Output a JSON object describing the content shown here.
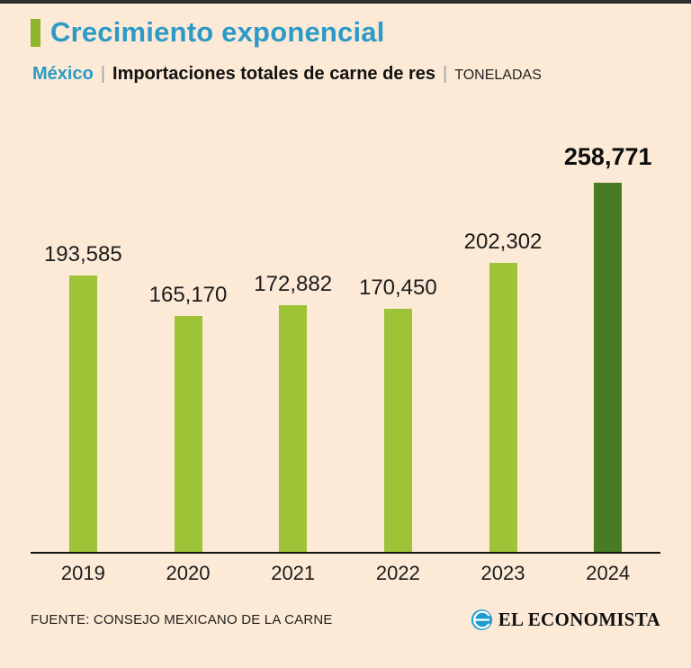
{
  "header": {
    "title": "Crecimiento exponencial",
    "kicker_region": "México",
    "separator": "|",
    "kicker_subject": "Importaciones totales de carne de res",
    "kicker_unit": "TONELADAS"
  },
  "chart_data": {
    "type": "bar",
    "title": "Crecimiento exponencial",
    "subtitle": "México | Importaciones totales de carne de res | Toneladas",
    "categories": [
      "2019",
      "2020",
      "2021",
      "2022",
      "2023",
      "2024"
    ],
    "values": [
      193585,
      165170,
      172882,
      170450,
      202302,
      258771
    ],
    "labels": [
      "193,585",
      "165,170",
      "172,882",
      "170,450",
      "202,302",
      "258,771"
    ],
    "xlabel": "",
    "ylabel": "Toneladas",
    "ylim": [
      0,
      258771
    ],
    "grid": false,
    "legend": "none",
    "highlight_index": 5,
    "bar_color": "#9cc436",
    "highlight_color": "#457c24"
  },
  "footer": {
    "source": "FUENTE: CONSEJO MEXICANO DE LA CARNE",
    "brand": "EL ECONOMISTA"
  },
  "colors": {
    "background": "#fce9d6",
    "accent_blue": "#2c9ac7",
    "bar_green": "#9cc436",
    "bar_dark_green": "#457c24",
    "top_rule": "#2e2e2e"
  }
}
